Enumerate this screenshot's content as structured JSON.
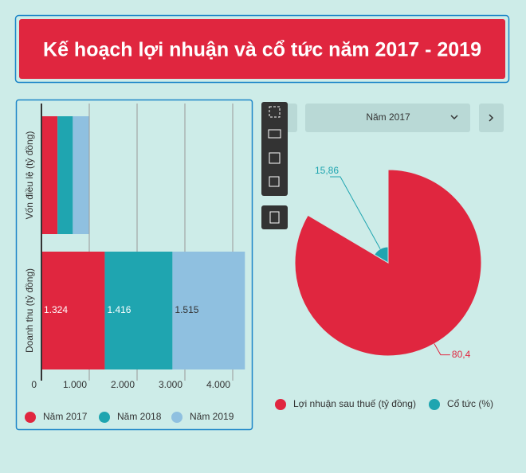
{
  "title": "Kế hoạch lợi nhuận và cổ tức năm 2017 - 2019",
  "year_select": "Năm 2017",
  "chart_data": [
    {
      "type": "bar",
      "orientation": "horizontal",
      "stacked": true,
      "categories": [
        "Vốn điều lệ (tỷ đồng)",
        "Doanh thu (tỷ đồng)"
      ],
      "series": [
        {
          "name": "Năm 2017",
          "color": "#e0263f",
          "values": [
            336,
            1324
          ],
          "value_labels": [
            null,
            "1.324"
          ]
        },
        {
          "name": "Năm 2018",
          "color": "#1fa5b0",
          "values": [
            320,
            1416
          ],
          "value_labels": [
            null,
            "1.416"
          ]
        },
        {
          "name": "Năm 2019",
          "color": "#8fc0e0",
          "values": [
            336,
            1515
          ],
          "value_labels": [
            null,
            "1.515"
          ]
        }
      ],
      "xlim": [
        0,
        4300
      ],
      "xticks": [
        0,
        {
          "value": 1000,
          "label": "1.000"
        },
        {
          "value": 2000,
          "label": "2.000"
        },
        {
          "value": 3000,
          "label": "3.000"
        },
        {
          "value": 4000,
          "label": "4.000"
        }
      ],
      "grid": true,
      "legend": "bottom"
    },
    {
      "type": "pie",
      "categories": [
        "Lợi nhuận sau thuế (tỷ đồng)",
        "Cổ tức (%)"
      ],
      "values": [
        80.4,
        15.86
      ],
      "value_labels": [
        "80,4",
        "15,86"
      ],
      "colors": [
        "#e0263f",
        "#1fa5b0"
      ],
      "legend": "bottom"
    }
  ]
}
